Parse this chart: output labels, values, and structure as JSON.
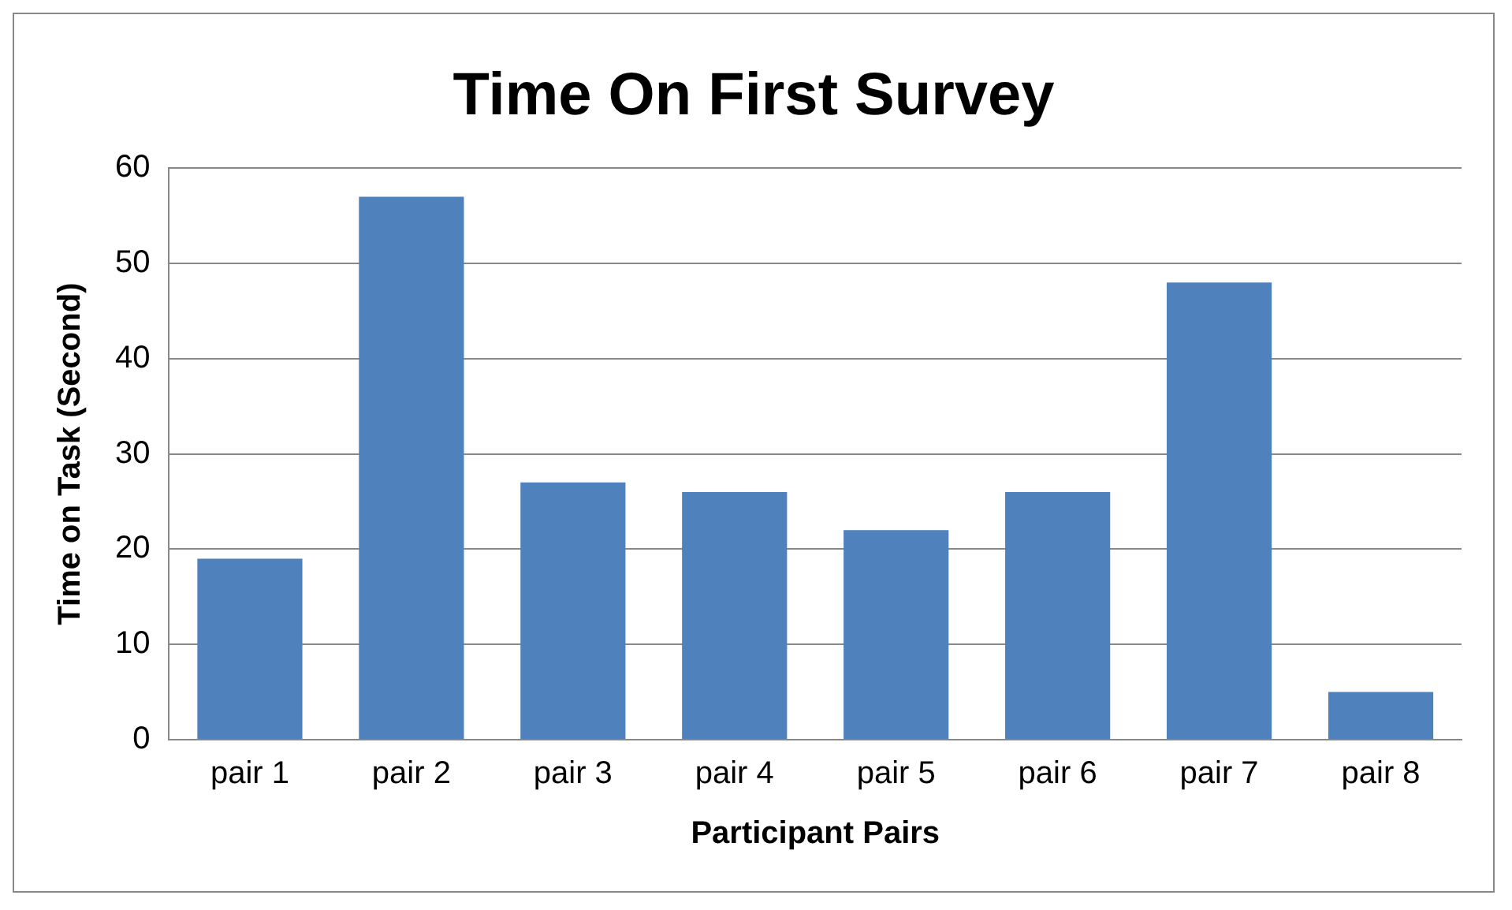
{
  "chart_data": {
    "type": "bar",
    "title": "Time On First Survey",
    "xlabel": "Participant Pairs",
    "ylabel": "Time on Task (Second)",
    "categories": [
      "pair 1",
      "pair 2",
      "pair 3",
      "pair 4",
      "pair 5",
      "pair 6",
      "pair 7",
      "pair 8"
    ],
    "values": [
      19,
      57,
      27,
      26,
      22,
      26,
      48,
      5
    ],
    "color": "#4f81bd",
    "ylim": [
      0,
      60
    ],
    "yticks": [
      0,
      10,
      20,
      30,
      40,
      50,
      60
    ],
    "grid": "y",
    "legend": false
  }
}
